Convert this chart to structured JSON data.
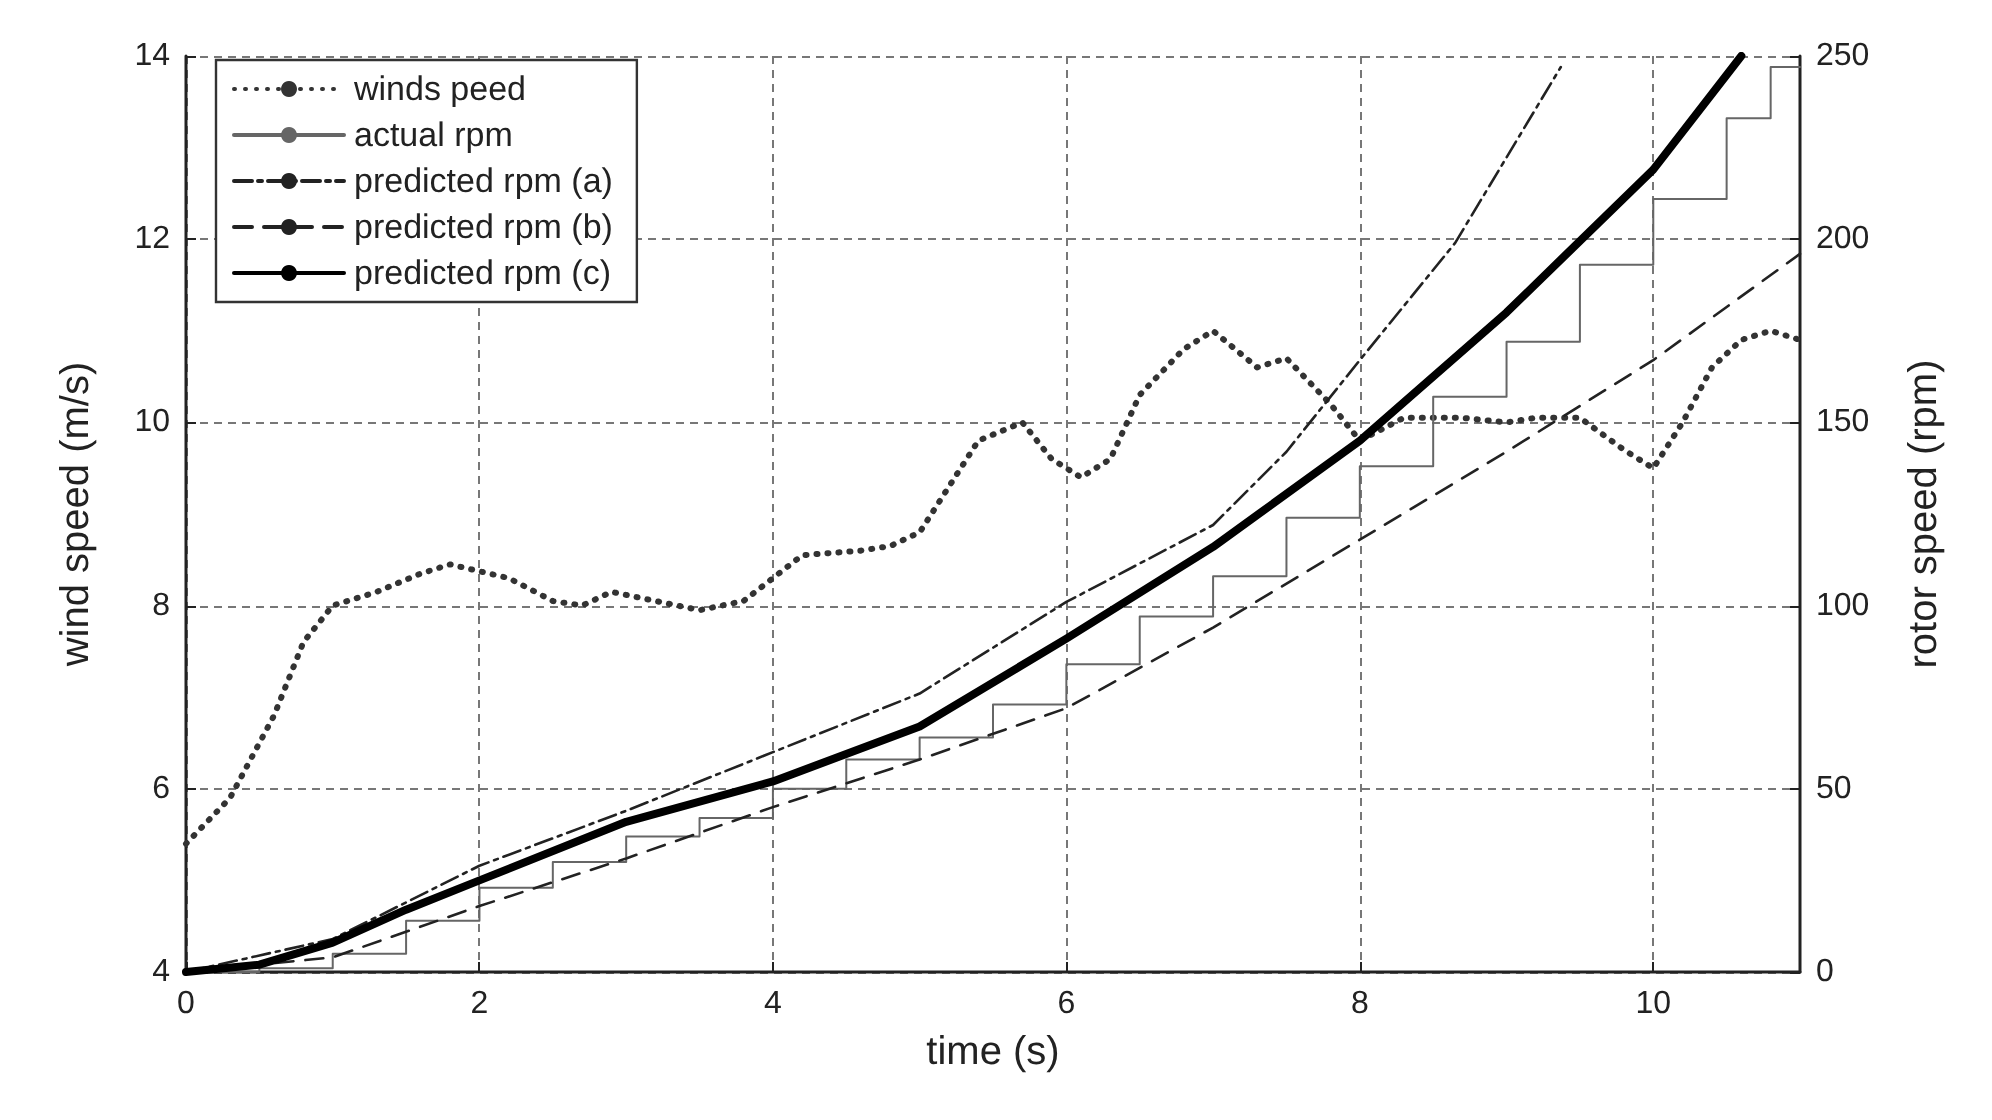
{
  "chart_data": {
    "type": "line",
    "xlabel": "time (s)",
    "ylabel": "wind speed (m/s)",
    "y2label": "rotor speed (rpm)",
    "xlim": [
      0,
      11
    ],
    "xticks": [
      0,
      2,
      4,
      6,
      8,
      10
    ],
    "ylim": [
      4,
      14
    ],
    "yticks": [
      4,
      6,
      8,
      10,
      12,
      14
    ],
    "y2lim": [
      0,
      250
    ],
    "y2ticks": [
      0,
      50,
      100,
      150,
      200,
      250
    ],
    "grid": true,
    "legend": "top left",
    "series": [
      {
        "name": "winds peed",
        "color": "#333333",
        "line_style": "dotted",
        "x": [
          0,
          0.3,
          0.6,
          0.8,
          1.0,
          1.3,
          1.6,
          1.8,
          2.2,
          2.5,
          2.7,
          2.9,
          3.2,
          3.5,
          3.8,
          4.0,
          4.2,
          4.6,
          4.8,
          5.0,
          5.2,
          5.4,
          5.7,
          5.9,
          6.1,
          6.3,
          6.5,
          6.8,
          7.0,
          7.3,
          7.5,
          7.8,
          8.0,
          8.3,
          8.7,
          9.0,
          9.2,
          9.5,
          9.8,
          10.0,
          10.2,
          10.4,
          10.6,
          10.8,
          11.0
        ],
        "values": [
          5.4,
          5.9,
          6.8,
          7.6,
          8.0,
          8.15,
          8.35,
          8.45,
          8.3,
          8.05,
          8.0,
          8.15,
          8.05,
          7.95,
          8.05,
          8.3,
          8.55,
          8.6,
          8.65,
          8.8,
          9.3,
          9.8,
          10.0,
          9.6,
          9.4,
          9.6,
          10.3,
          10.8,
          11.0,
          10.6,
          10.7,
          10.2,
          9.8,
          10.05,
          10.05,
          10.0,
          10.05,
          10.05,
          9.7,
          9.5,
          10.0,
          10.6,
          10.9,
          11.0,
          10.9
        ]
      },
      {
        "name": "actual rpm",
        "type": "step",
        "axis": "y2",
        "color": "#666666",
        "line_style": "solid",
        "x": [
          0,
          0.5,
          1,
          1.5,
          2,
          2.5,
          3,
          3.5,
          4,
          4.5,
          5,
          5.5,
          6,
          6.5,
          7,
          7.5,
          8,
          8.5,
          9,
          9.5,
          10,
          10.5,
          10.8,
          11
        ],
        "values": [
          0,
          1,
          5,
          14,
          23,
          30,
          37,
          42,
          50,
          58,
          64,
          73,
          84,
          97,
          108,
          124,
          138,
          157,
          172,
          193,
          211,
          233,
          247,
          247
        ]
      },
      {
        "name": "predicted rpm (a)",
        "axis": "y2",
        "color": "#222222",
        "line_style": "dashdot",
        "x": [
          0,
          1,
          2,
          3,
          4,
          5,
          6,
          7,
          7.5,
          8,
          8.65,
          9.37
        ],
        "values": [
          0,
          9,
          29,
          44,
          60,
          76,
          101,
          122,
          142,
          167,
          199,
          247
        ]
      },
      {
        "name": "predicted rpm (b)",
        "axis": "y2",
        "color": "#222222",
        "line_style": "dashed",
        "x": [
          0,
          1,
          2,
          3,
          4,
          5,
          6,
          7,
          8,
          9,
          10,
          11
        ],
        "values": [
          0,
          4,
          18,
          31,
          45,
          58,
          72,
          94,
          118,
          142,
          167,
          196
        ]
      },
      {
        "name": "predicted rpm (c)",
        "axis": "y2",
        "color": "#000000",
        "line_style": "solid",
        "x": [
          0,
          0.5,
          1,
          1.5,
          2,
          3,
          4,
          5,
          6,
          7,
          8,
          9,
          10,
          10.6
        ],
        "values": [
          0,
          2,
          8,
          17,
          25,
          41,
          52,
          67,
          91,
          116,
          145,
          180,
          219,
          250
        ]
      }
    ]
  }
}
